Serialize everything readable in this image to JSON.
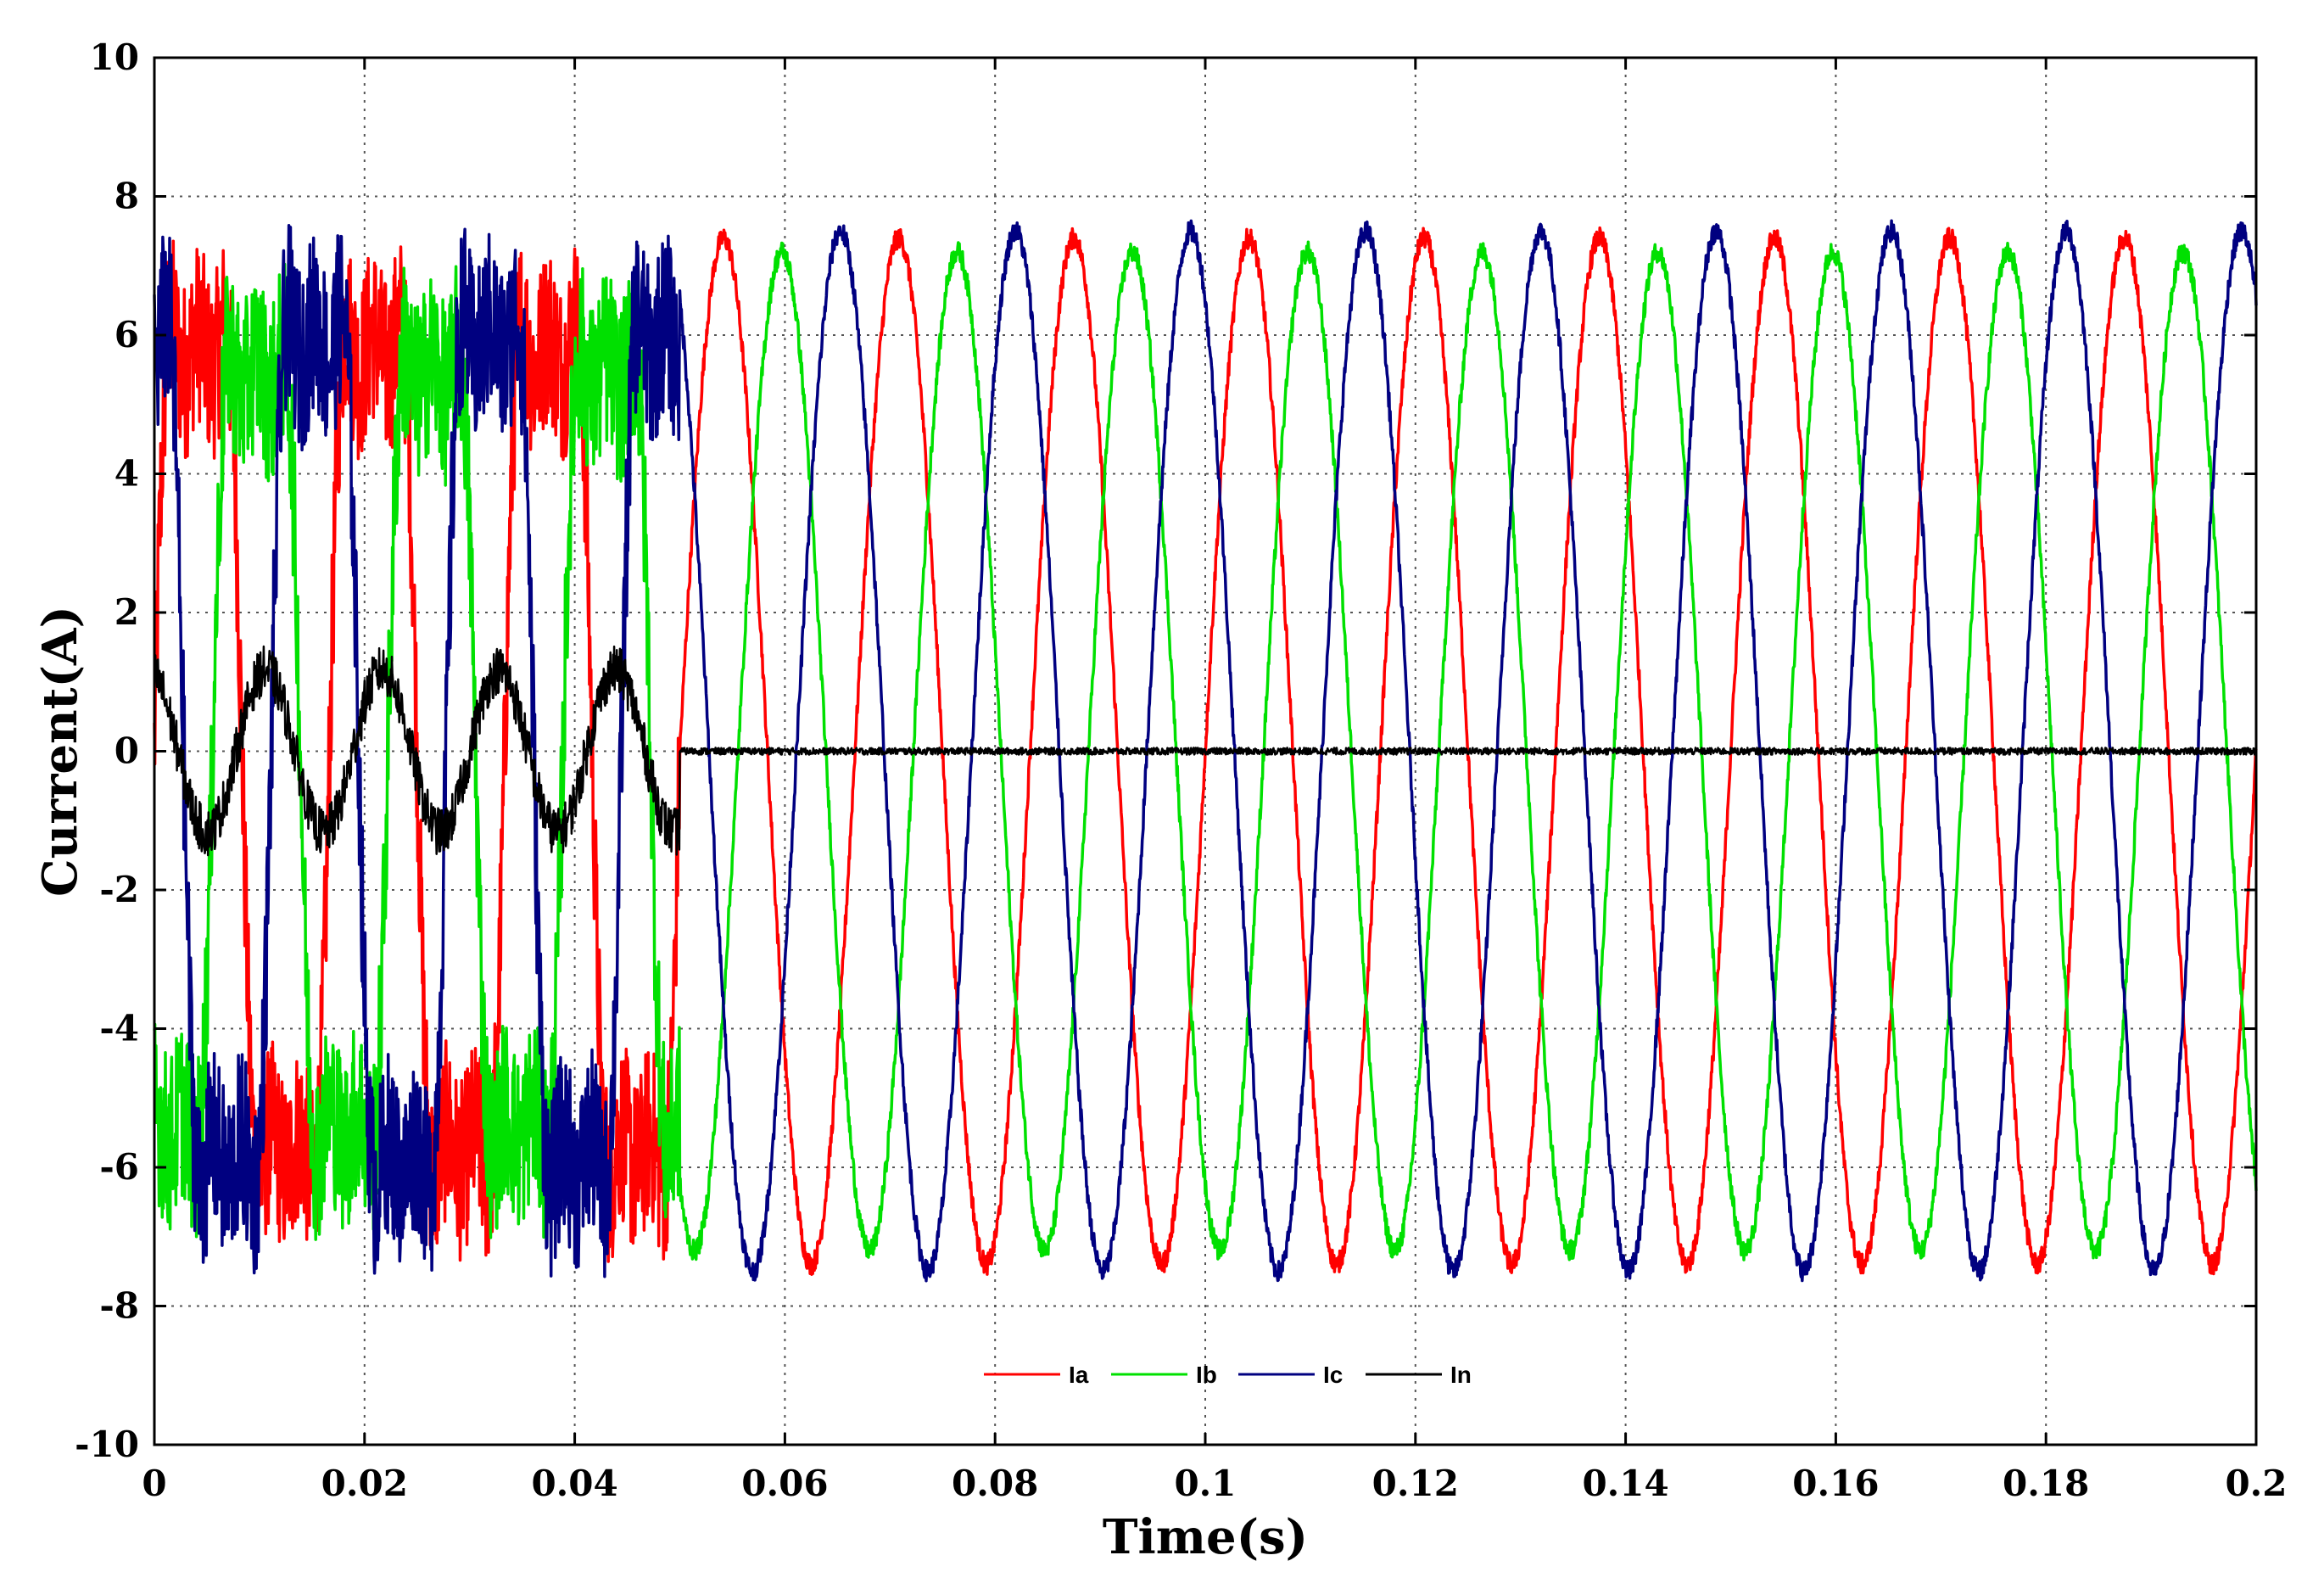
{
  "chart_data": {
    "type": "line",
    "title": "",
    "xlabel": "Time(s)",
    "ylabel": "Current(A)",
    "xlim": [
      0,
      0.2
    ],
    "ylim": [
      -10,
      10
    ],
    "grid": true,
    "grid_style": "dotted",
    "legend_position": "bottom-center",
    "x_ticks": [
      0,
      0.02,
      0.04,
      0.06,
      0.08,
      0.1,
      0.12,
      0.14,
      0.16,
      0.18,
      0.2
    ],
    "x_tick_labels": [
      "0",
      "0.02",
      "0.04",
      "0.06",
      "0.08",
      "0.1",
      "0.12",
      "0.14",
      "0.16",
      "0.18",
      "0.2"
    ],
    "y_ticks": [
      -10,
      -8,
      -6,
      -4,
      -2,
      0,
      2,
      4,
      6,
      8,
      10
    ],
    "y_tick_labels": [
      "-10",
      "-8",
      "-6",
      "-4",
      "-2",
      "0",
      "2",
      "4",
      "6",
      "8",
      "10"
    ],
    "fundamental_hz": 60,
    "compensation_start_s": 0.05,
    "series": [
      {
        "name": "Ia",
        "color": "#ff0000",
        "phase_deg": 0,
        "amplitude_before_a": 8.0,
        "amplitude_after_a": 7.4,
        "noise_before_a": 1.2,
        "noise_after_a": 0.15
      },
      {
        "name": "Ib",
        "color": "#00e000",
        "phase_deg": -120,
        "amplitude_before_a": 7.5,
        "amplitude_after_a": 7.2,
        "noise_before_a": 1.2,
        "noise_after_a": 0.15
      },
      {
        "name": "Ic",
        "color": "#000080",
        "phase_deg": 120,
        "amplitude_before_a": 8.2,
        "amplitude_after_a": 7.5,
        "noise_before_a": 1.2,
        "noise_after_a": 0.15
      },
      {
        "name": "In",
        "color": "#000000",
        "phase_deg": 0,
        "amplitude_before_a": 1.3,
        "amplitude_after_a": 0.0,
        "noise_before_a": 0.35,
        "noise_after_a": 0.05
      }
    ]
  }
}
